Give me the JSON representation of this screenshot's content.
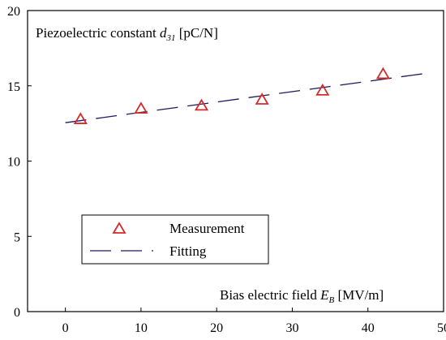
{
  "chart_data": {
    "type": "scatter",
    "title": "",
    "ylabel": {
      "prefix": "Piezoelectric constant ",
      "symbol": "d",
      "subscript": "31",
      "unit": " [pC/N]"
    },
    "xlabel": {
      "prefix": "Bias electric field ",
      "symbol": "E",
      "subscript": "B",
      "unit": " [MV/m]"
    },
    "xlim": [
      -5,
      50
    ],
    "ylim": [
      0,
      20
    ],
    "x_ticks": [
      "0",
      "10",
      "20",
      "30",
      "40",
      "50"
    ],
    "y_ticks": [
      "0",
      "5",
      "10",
      "15",
      "20"
    ],
    "grid": false,
    "legend_position": "lower-left",
    "series": [
      {
        "name": "Measurement",
        "kind": "markers",
        "marker": "triangle-open",
        "color": "#d42a2a",
        "x": [
          2,
          10,
          18,
          26,
          34,
          42
        ],
        "y": [
          12.8,
          13.5,
          13.7,
          14.1,
          14.7,
          15.8
        ]
      },
      {
        "name": "Fitting",
        "kind": "line",
        "style": "dashed",
        "color": "#1a1a5e",
        "x": [
          0,
          48
        ],
        "y": [
          12.55,
          15.85
        ]
      }
    ]
  }
}
